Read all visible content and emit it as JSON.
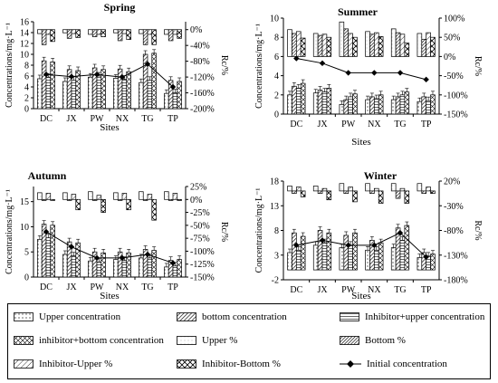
{
  "legend": {
    "items": [
      {
        "key": "uc",
        "label": "Upper concentration",
        "pattern": "p-dot"
      },
      {
        "key": "bc",
        "label": "bottom concentration",
        "pattern": "p-diag"
      },
      {
        "key": "iuc",
        "label": "Inhibitor+upper concentration",
        "pattern": "p-hline"
      },
      {
        "key": "ibc",
        "label": "inhibitor+bottom concentration",
        "pattern": "p-cross"
      },
      {
        "key": "up",
        "label": "Upper %",
        "pattern": "p-light"
      },
      {
        "key": "bp",
        "label": "Bottom %",
        "pattern": "p-diagdense"
      },
      {
        "key": "iup",
        "label": "Inhibitor-Upper %",
        "pattern": "p-diagwide"
      },
      {
        "key": "ibp",
        "label": "Inhibitor-Bottom %",
        "pattern": "p-cross2"
      },
      {
        "key": "init",
        "label": "Initial concentration",
        "pattern": "line-diamond"
      }
    ]
  },
  "chart_data": [
    {
      "type": "bar",
      "title": "Spring",
      "xlabel": "Sites",
      "ylabel": "Concentrations/mg·L⁻¹",
      "y2label": "Rc/%",
      "categories": [
        "DC",
        "JX",
        "PW",
        "NX",
        "TG",
        "TP"
      ],
      "ylim": [
        0,
        16
      ],
      "yticks": [
        0,
        2,
        4,
        6,
        8,
        10,
        12,
        14,
        16
      ],
      "y2lim": [
        -200,
        20
      ],
      "y2ticks": [
        0,
        -40,
        -80,
        -120,
        -160,
        -200
      ],
      "y2suffix": "%",
      "conc_series": [
        {
          "key": "uc",
          "values": [
            5.5,
            5.0,
            5.8,
            5.6,
            4.8,
            2.8
          ]
        },
        {
          "key": "bc",
          "values": [
            8.8,
            7.2,
            7.5,
            7.3,
            10.0,
            5.2
          ]
        },
        {
          "key": "iuc",
          "values": [
            5.8,
            5.2,
            6.0,
            5.4,
            5.2,
            2.9
          ]
        },
        {
          "key": "ibc",
          "values": [
            8.6,
            7.0,
            7.2,
            6.8,
            10.2,
            5.0
          ]
        }
      ],
      "initial": [
        6.3,
        5.9,
        6.3,
        5.8,
        8.2,
        4.0
      ],
      "rc_series": [
        {
          "key": "up",
          "values": [
            -10,
            -8,
            -12,
            -8,
            -10,
            -12
          ]
        },
        {
          "key": "bp",
          "values": [
            -38,
            -22,
            -18,
            -28,
            -38,
            -28
          ]
        },
        {
          "key": "iup",
          "values": [
            -12,
            -10,
            -12,
            -10,
            -12,
            -12
          ]
        },
        {
          "key": "ibp",
          "values": [
            -30,
            -20,
            -18,
            -25,
            -38,
            -22
          ]
        }
      ]
    },
    {
      "type": "bar",
      "title": "Summer",
      "xlabel": "Sites",
      "ylabel": "Concentrations/mg·L⁻¹",
      "y2label": "Rc/%",
      "categories": [
        "DC",
        "JX",
        "PW",
        "NX",
        "TG",
        "TP"
      ],
      "ylim": [
        0,
        10
      ],
      "yticks": [
        0,
        2,
        4,
        6,
        8,
        10
      ],
      "y2lim": [
        -150,
        100
      ],
      "y2ticks": [
        100,
        50,
        0,
        -50,
        -100,
        -150
      ],
      "y2suffix": "%",
      "conc_series": [
        {
          "key": "uc",
          "values": [
            2.0,
            2.2,
            1.0,
            1.5,
            1.5,
            1.3
          ]
        },
        {
          "key": "bc",
          "values": [
            2.9,
            2.5,
            1.5,
            1.8,
            1.8,
            1.8
          ]
        },
        {
          "key": "iuc",
          "values": [
            2.7,
            2.3,
            1.8,
            1.6,
            2.0,
            1.4
          ]
        },
        {
          "key": "ibc",
          "values": [
            3.2,
            2.7,
            2.1,
            2.0,
            2.3,
            2.0
          ]
        }
      ],
      "initial": [
        5.8,
        5.3,
        4.3,
        4.3,
        4.3,
        3.6
      ],
      "rc_series": [
        {
          "key": "up",
          "values": [
            70,
            60,
            90,
            65,
            72,
            60
          ]
        },
        {
          "key": "bp",
          "values": [
            60,
            55,
            72,
            58,
            62,
            45
          ]
        },
        {
          "key": "iup",
          "values": [
            65,
            58,
            60,
            62,
            58,
            62
          ]
        },
        {
          "key": "ibp",
          "values": [
            48,
            50,
            50,
            52,
            35,
            50
          ]
        }
      ]
    },
    {
      "type": "bar",
      "title": "Autumn",
      "xlabel": "Sites",
      "ylabel": "Concentrations/mg·L⁻¹",
      "y2label": "Rc/%",
      "categories": [
        "DC",
        "JX",
        "PW",
        "NX",
        "TG",
        "TP"
      ],
      "ylim": [
        0,
        18
      ],
      "yticks": [
        0,
        5,
        10,
        15
      ],
      "y2lim": [
        -150,
        25
      ],
      "y2ticks": [
        25,
        0,
        -25,
        -50,
        -75,
        -100,
        -125,
        -150
      ],
      "y2suffix": "%",
      "conc_series": [
        {
          "key": "uc",
          "values": [
            7.5,
            4.5,
            3.2,
            3.5,
            3.8,
            2.0
          ]
        },
        {
          "key": "bc",
          "values": [
            10.5,
            7.0,
            5.0,
            5.0,
            5.5,
            3.3
          ]
        },
        {
          "key": "iuc",
          "values": [
            7.8,
            4.2,
            3.0,
            3.3,
            3.8,
            2.2
          ]
        },
        {
          "key": "ibc",
          "values": [
            10.3,
            6.8,
            4.8,
            4.8,
            5.3,
            3.5
          ]
        }
      ],
      "initial": [
        9.0,
        6.0,
        3.8,
        3.8,
        4.5,
        2.8
      ],
      "rc_series": [
        {
          "key": "up",
          "values": [
            13,
            13,
            15,
            13,
            15,
            15
          ]
        },
        {
          "key": "bp",
          "values": [
            -2,
            -2,
            -2,
            -2,
            -2,
            -2
          ]
        },
        {
          "key": "iup",
          "values": [
            12,
            10,
            8,
            12,
            10,
            12
          ]
        },
        {
          "key": "ibp",
          "values": [
            -2,
            -20,
            -25,
            -20,
            -40,
            -2
          ]
        }
      ]
    },
    {
      "type": "bar",
      "title": "Winter",
      "xlabel": "Sites",
      "ylabel": "Concentrations/mg·L⁻¹",
      "y2label": "Rc/%",
      "categories": [
        "DC",
        "JX",
        "PW",
        "NX",
        "TG",
        "TP"
      ],
      "ylim": [
        -2,
        18
      ],
      "yticks": [
        -2,
        3,
        8,
        13,
        18
      ],
      "y2lim": [
        -180,
        20
      ],
      "y2ticks": [
        20,
        -30,
        -80,
        -130,
        -180
      ],
      "y2suffix": "%",
      "conc_series": [
        {
          "key": "uc",
          "values": [
            3.5,
            5.0,
            4.5,
            4.0,
            4.5,
            2.5
          ]
        },
        {
          "key": "bc",
          "values": [
            7.5,
            8.0,
            7.0,
            6.0,
            8.5,
            3.5
          ]
        },
        {
          "key": "iuc",
          "values": [
            4.0,
            5.5,
            5.0,
            4.0,
            6.0,
            2.8
          ]
        },
        {
          "key": "ibc",
          "values": [
            6.8,
            7.5,
            7.5,
            5.5,
            9.0,
            3.2
          ]
        }
      ],
      "initial": [
        5.0,
        6.0,
        5.0,
        5.0,
        7.5,
        2.6
      ],
      "rc_series": [
        {
          "key": "up",
          "values": [
            10,
            10,
            15,
            15,
            15,
            15
          ]
        },
        {
          "key": "bp",
          "values": [
            -5,
            -5,
            -5,
            -5,
            -15,
            -5
          ]
        },
        {
          "key": "iup",
          "values": [
            8,
            5,
            8,
            5,
            5,
            8
          ]
        },
        {
          "key": "ibp",
          "values": [
            -12,
            -18,
            -22,
            -25,
            -25,
            -5
          ]
        }
      ]
    }
  ]
}
